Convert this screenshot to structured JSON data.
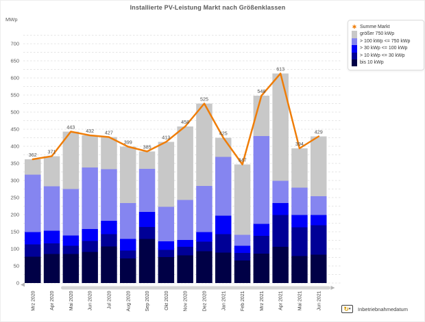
{
  "title": "Installierte PV-Leistung Markt nach Größenklassen",
  "y_axis_unit": "MWp",
  "legend": {
    "position": "top-right",
    "items": [
      {
        "label": "Summe Markt",
        "type": "line-marker",
        "color": "#ef7d08"
      },
      {
        "label": "größer 750 kWp",
        "type": "box",
        "color": "#c8c8c8"
      },
      {
        "label": "> 100 kWp <= 750 kWp",
        "type": "box",
        "color": "#8585f0"
      },
      {
        "label": "> 30 kWp <= 100 kWp",
        "type": "box",
        "color": "#0000fa"
      },
      {
        "label": "> 10 kWp <= 30 kWp",
        "type": "box",
        "color": "#000096"
      },
      {
        "label": "bis 10 kWp",
        "type": "box",
        "color": "#000046"
      }
    ]
  },
  "footer": {
    "filter_label": "Inbetriebnahmedatum",
    "filter_icon": "rotate-arrow-icon",
    "caret": "▾",
    "icon_glyph": "↻"
  },
  "scrollbar": {
    "left_arrow": "◄",
    "right_arrow": "►"
  },
  "chart_data": {
    "type": "bar",
    "subtype": "stacked-bars-with-total-line",
    "title": "Installierte PV-Leistung Markt nach Größenklassen",
    "xlabel": "Inbetriebnahmedatum",
    "ylabel": "MWp",
    "ylim": [
      0,
      725
    ],
    "y_major_step": 50,
    "y_minor_step": 25,
    "grid": "dashed-horizontal",
    "legend_position": "top-right",
    "categories": [
      "Mrz 2020",
      "Apr 2020",
      "Mai 2020",
      "Jun 2020",
      "Jul 2020",
      "Aug 2020",
      "Sep 2020",
      "Okt 2020",
      "Nov 2020",
      "Dez 2020",
      "Jan 2021",
      "Feb 2021",
      "Mrz 2021",
      "Apr 2021",
      "Mai 2021",
      "Jun 2021"
    ],
    "series": [
      {
        "name": "bis 10 kWp",
        "color": "#000046",
        "values": [
          77,
          85,
          85,
          91,
          107,
          72,
          129,
          76,
          81,
          93,
          89,
          66,
          86,
          106,
          79,
          83
        ]
      },
      {
        "name": "> 10 kWp <= 30 kWp",
        "color": "#000096",
        "values": [
          36,
          31,
          24,
          32,
          36,
          23,
          35,
          21,
          25,
          28,
          54,
          22,
          52,
          93,
          84,
          86
        ]
      },
      {
        "name": "> 30 kWp <= 100 kWp",
        "color": "#0000fa",
        "values": [
          36,
          37,
          30,
          35,
          39,
          34,
          44,
          25,
          20,
          28,
          54,
          21,
          35,
          35,
          36,
          30
        ]
      },
      {
        "name": "> 100 kWp <= 750 kWp",
        "color": "#8585f0",
        "values": [
          168,
          130,
          136,
          180,
          151,
          105,
          126,
          101,
          117,
          135,
          172,
          32,
          257,
          65,
          80,
          55
        ]
      },
      {
        "name": "größer 750 kWp",
        "color": "#c8c8c8",
        "values": [
          45,
          88,
          168,
          94,
          94,
          165,
          51,
          190,
          215,
          241,
          56,
          206,
          118,
          314,
          115,
          175
        ]
      }
    ],
    "line_series": {
      "name": "Summe Markt",
      "color": "#ef7d08",
      "values": [
        362,
        371,
        443,
        432,
        427,
        399,
        385,
        413,
        458,
        525,
        425,
        347,
        548,
        613,
        394,
        429
      ]
    },
    "data_labels": [
      362,
      371,
      443,
      432,
      427,
      399,
      385,
      413,
      458,
      525,
      425,
      347,
      548,
      613,
      394,
      429
    ]
  }
}
